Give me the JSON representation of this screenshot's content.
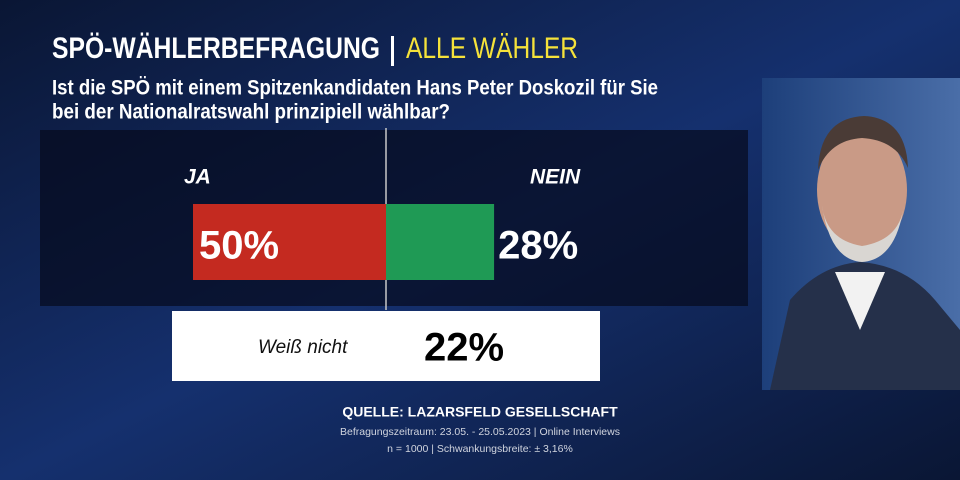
{
  "chart_data": {
    "type": "bar",
    "title": "SPÖ-WÄHLERBEFRAGUNG",
    "subtitle": "ALLE WÄHLER",
    "question": [
      "Ist die SPÖ mit einem Spitzenkandidaten Hans Peter Doskozil für Sie",
      "bei der Nationalratswahl prinzipiell wählbar?"
    ],
    "categories": [
      "JA",
      "NEIN"
    ],
    "values": [
      50,
      28
    ],
    "value_labels": [
      "50%",
      "28%"
    ],
    "colors": [
      "#c42a20",
      "#1f9a55"
    ],
    "other": {
      "label": "Weiß nicht",
      "value": 22,
      "value_label": "22%"
    },
    "source": "QUELLE:  LAZARSFELD GESELLSCHAFT",
    "notes": [
      "Befragungszeitraum: 23.05. - 25.05.2023 | Online Interviews",
      "n = 1000 | Schwankungsbreite: ± 3,16%"
    ]
  }
}
